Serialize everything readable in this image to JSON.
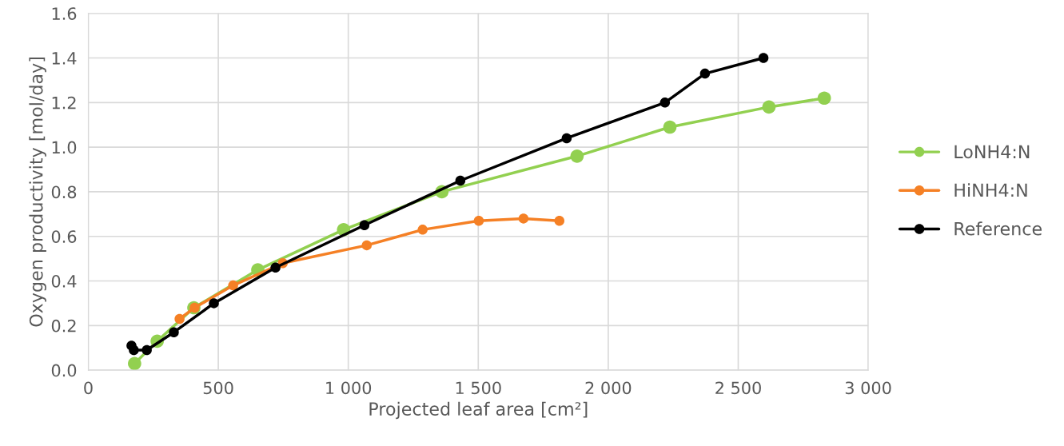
{
  "chart_data": {
    "type": "line",
    "xlabel": "Projected leaf area [cm²]",
    "ylabel": "Oxygen productivity [mol/day]",
    "xlim": [
      0,
      3000
    ],
    "xticks": [
      0,
      500,
      {
        "value": 1000,
        "label": "1 000"
      },
      {
        "value": 1500,
        "label": "1 500"
      },
      {
        "value": 2000,
        "label": "2 000"
      },
      {
        "value": 2500,
        "label": "2 500"
      },
      {
        "value": 3000,
        "label": "3 000"
      }
    ],
    "ylim": [
      0,
      1.6
    ],
    "yticks": [
      {
        "value": 0,
        "label": "0.0"
      },
      0.2,
      0.4,
      0.6,
      0.8,
      {
        "value": 1.0,
        "label": "1.0"
      },
      1.2,
      1.4,
      1.6
    ],
    "grid": true,
    "legend": "right",
    "marker": "circle",
    "line_style": "solid",
    "series": [
      {
        "name": "LoNH4:N",
        "color": "#92d050",
        "x": [
          178,
          265,
          406,
          652,
          982,
          1360,
          1880,
          2237,
          2618,
          2831
        ],
        "values": [
          0.03,
          0.13,
          0.28,
          0.45,
          0.63,
          0.8,
          0.96,
          1.09,
          1.18,
          1.22
        ]
      },
      {
        "name": "HiNH4:N",
        "color": "#f58025",
        "x": [
          351,
          409,
          557,
          748,
          1071,
          1286,
          1502,
          1674,
          1812
        ],
        "values": [
          0.23,
          0.28,
          0.38,
          0.48,
          0.56,
          0.63,
          0.67,
          0.68,
          0.67
        ]
      },
      {
        "name": "Reference",
        "color": "#000000",
        "x": [
          166,
          175,
          225,
          329,
          483,
          720,
          1062,
          1431,
          1840,
          2218,
          2372,
          2597
        ],
        "values": [
          0.11,
          0.09,
          0.09,
          0.17,
          0.3,
          0.46,
          0.65,
          0.85,
          1.04,
          1.2,
          1.33,
          1.4
        ]
      }
    ]
  }
}
